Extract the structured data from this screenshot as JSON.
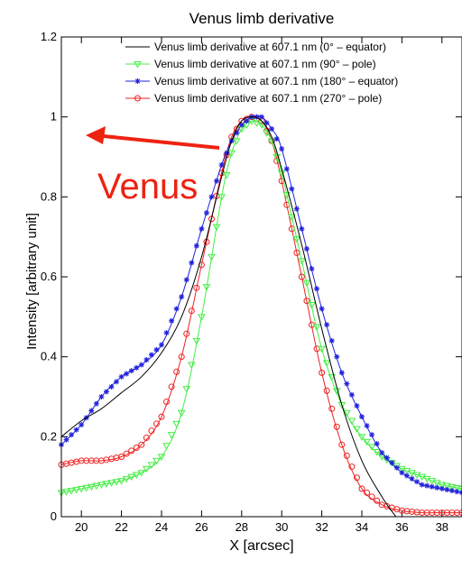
{
  "chart_data": {
    "type": "line",
    "title": "Venus limb derivative",
    "xlabel": "X [arcsec]",
    "ylabel": "Intensity [arbitrary unit]",
    "xlim": [
      19,
      39
    ],
    "ylim": [
      0,
      1.2
    ],
    "xticks": [
      "20",
      "22",
      "24",
      "26",
      "28",
      "30",
      "32",
      "34",
      "36",
      "38"
    ],
    "xtick_values": [
      20,
      22,
      24,
      26,
      28,
      30,
      32,
      34,
      36,
      38
    ],
    "yticks": [
      "0",
      "0.2",
      "0.4",
      "0.6",
      "0.8",
      "1",
      "1.2"
    ],
    "ytick_values": [
      0,
      0.2,
      0.4,
      0.6,
      0.8,
      1.0,
      1.2
    ],
    "grid": false,
    "legend_position": "top-right",
    "annotation": {
      "text": "Venus",
      "color": "#ee2211"
    },
    "series": [
      {
        "name": "Venus limb derivative at 607.1 nm (0° – equator)",
        "color": "#000000",
        "marker": "none",
        "x": [
          19,
          20,
          21,
          22,
          23,
          24,
          25,
          26,
          27,
          27.5,
          28,
          28.5,
          29,
          29.5,
          30,
          31,
          32,
          33,
          34,
          35,
          35.7
        ],
        "y": [
          0.2,
          0.24,
          0.27,
          0.31,
          0.35,
          0.41,
          0.5,
          0.65,
          0.85,
          0.94,
          0.99,
          1.0,
          0.99,
          0.95,
          0.87,
          0.68,
          0.47,
          0.28,
          0.14,
          0.05,
          0.0
        ]
      },
      {
        "name": "Venus limb derivative at 607.1 nm (90° – pole)",
        "color": "#44ee44",
        "marker": "triangle-down",
        "x": [
          19,
          20,
          21,
          22,
          23,
          24,
          25,
          26,
          27,
          27.5,
          28,
          28.5,
          29,
          29.5,
          30,
          31,
          32,
          33,
          34,
          35,
          36,
          37,
          38,
          39
        ],
        "y": [
          0.06,
          0.07,
          0.08,
          0.09,
          0.11,
          0.15,
          0.26,
          0.5,
          0.8,
          0.91,
          0.97,
          0.99,
          0.98,
          0.94,
          0.86,
          0.64,
          0.42,
          0.28,
          0.2,
          0.15,
          0.12,
          0.1,
          0.08,
          0.07
        ]
      },
      {
        "name": "Venus limb derivative at 607.1 nm (180° – equator)",
        "color": "#2222dd",
        "marker": "star",
        "x": [
          19,
          20,
          21,
          22,
          23,
          24,
          25,
          26,
          27,
          27.5,
          28,
          28.5,
          29,
          29.5,
          30,
          31,
          32,
          33,
          34,
          35,
          36,
          37,
          38,
          39
        ],
        "y": [
          0.18,
          0.23,
          0.3,
          0.35,
          0.38,
          0.43,
          0.55,
          0.72,
          0.88,
          0.94,
          0.98,
          1.0,
          1.0,
          0.97,
          0.92,
          0.72,
          0.52,
          0.36,
          0.25,
          0.16,
          0.11,
          0.08,
          0.07,
          0.06
        ]
      },
      {
        "name": "Venus limb derivative at 607.1 nm (270° – pole)",
        "color": "#ee2222",
        "marker": "circle",
        "x": [
          19,
          20,
          21,
          22,
          23,
          24,
          25,
          26,
          27,
          27.5,
          28,
          28.5,
          29,
          29.5,
          30,
          31,
          32,
          33,
          34,
          35,
          36,
          37,
          38,
          39
        ],
        "y": [
          0.13,
          0.14,
          0.14,
          0.15,
          0.18,
          0.25,
          0.4,
          0.63,
          0.86,
          0.95,
          0.99,
          1.0,
          0.99,
          0.94,
          0.84,
          0.6,
          0.36,
          0.18,
          0.07,
          0.03,
          0.015,
          0.01,
          0.01,
          0.01
        ]
      }
    ]
  }
}
